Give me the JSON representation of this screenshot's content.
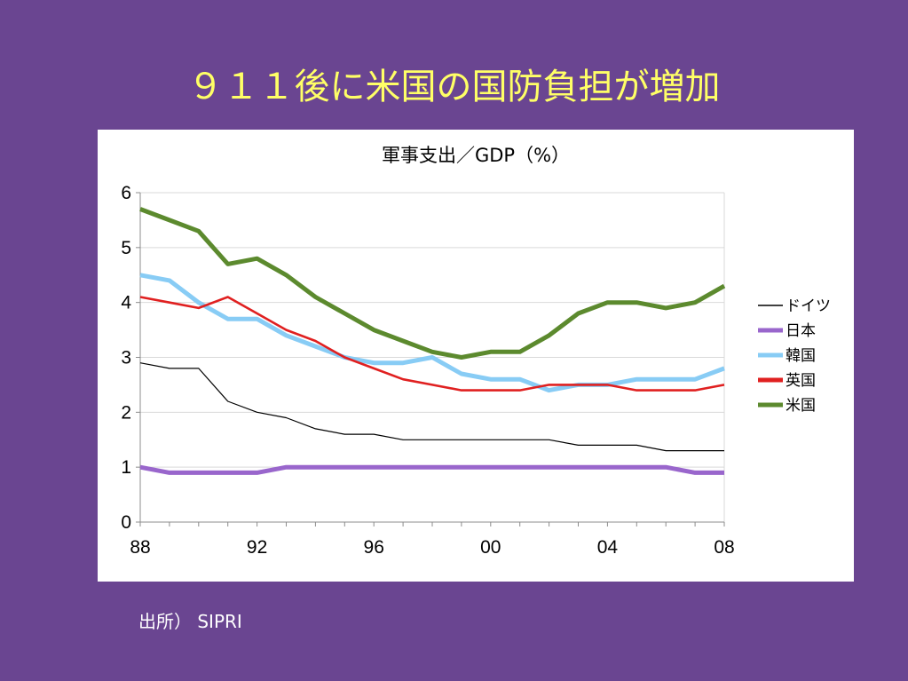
{
  "slide": {
    "title": "９１１後に米国の国防負担が増加",
    "source": "出所）  SIPRI"
  },
  "chart_data": {
    "type": "line",
    "title": "軍事支出／GDP（%）",
    "x": [
      88,
      89,
      90,
      91,
      92,
      93,
      94,
      95,
      96,
      97,
      98,
      99,
      0,
      1,
      2,
      3,
      4,
      5,
      6,
      7,
      8
    ],
    "x_tick_labels": [
      "88",
      "92",
      "96",
      "00",
      "04",
      "08"
    ],
    "x_tick_positions": [
      0,
      4,
      8,
      12,
      16,
      20
    ],
    "ylim": [
      0,
      6
    ],
    "y_ticks": [
      0,
      1,
      2,
      3,
      4,
      5,
      6
    ],
    "grid": true,
    "legend_position": "right",
    "series": [
      {
        "name": "ドイツ",
        "color": "#000000",
        "values": [
          2.9,
          2.8,
          2.8,
          2.2,
          2.0,
          1.9,
          1.7,
          1.6,
          1.6,
          1.5,
          1.5,
          1.5,
          1.5,
          1.5,
          1.5,
          1.4,
          1.4,
          1.4,
          1.3,
          1.3,
          1.3
        ]
      },
      {
        "name": "日本",
        "color": "#9966cc",
        "values": [
          1.0,
          0.9,
          0.9,
          0.9,
          0.9,
          1.0,
          1.0,
          1.0,
          1.0,
          1.0,
          1.0,
          1.0,
          1.0,
          1.0,
          1.0,
          1.0,
          1.0,
          1.0,
          1.0,
          0.9,
          0.9
        ]
      },
      {
        "name": "韓国",
        "color": "#88ccf5",
        "values": [
          4.5,
          4.4,
          4.0,
          3.7,
          3.7,
          3.4,
          3.2,
          3.0,
          2.9,
          2.9,
          3.0,
          2.7,
          2.6,
          2.6,
          2.4,
          2.5,
          2.5,
          2.6,
          2.6,
          2.6,
          2.8
        ]
      },
      {
        "name": "英国",
        "color": "#e02020",
        "values": [
          4.1,
          4.0,
          3.9,
          4.1,
          3.8,
          3.5,
          3.3,
          3.0,
          2.8,
          2.6,
          2.5,
          2.4,
          2.4,
          2.4,
          2.5,
          2.5,
          2.5,
          2.4,
          2.4,
          2.4,
          2.5
        ]
      },
      {
        "name": "米国",
        "color": "#5c8a2e",
        "values": [
          5.7,
          5.5,
          5.3,
          4.7,
          4.8,
          4.5,
          4.1,
          3.8,
          3.5,
          3.3,
          3.1,
          3.0,
          3.1,
          3.1,
          3.4,
          3.8,
          4.0,
          4.0,
          3.9,
          4.0,
          4.3
        ]
      }
    ]
  }
}
